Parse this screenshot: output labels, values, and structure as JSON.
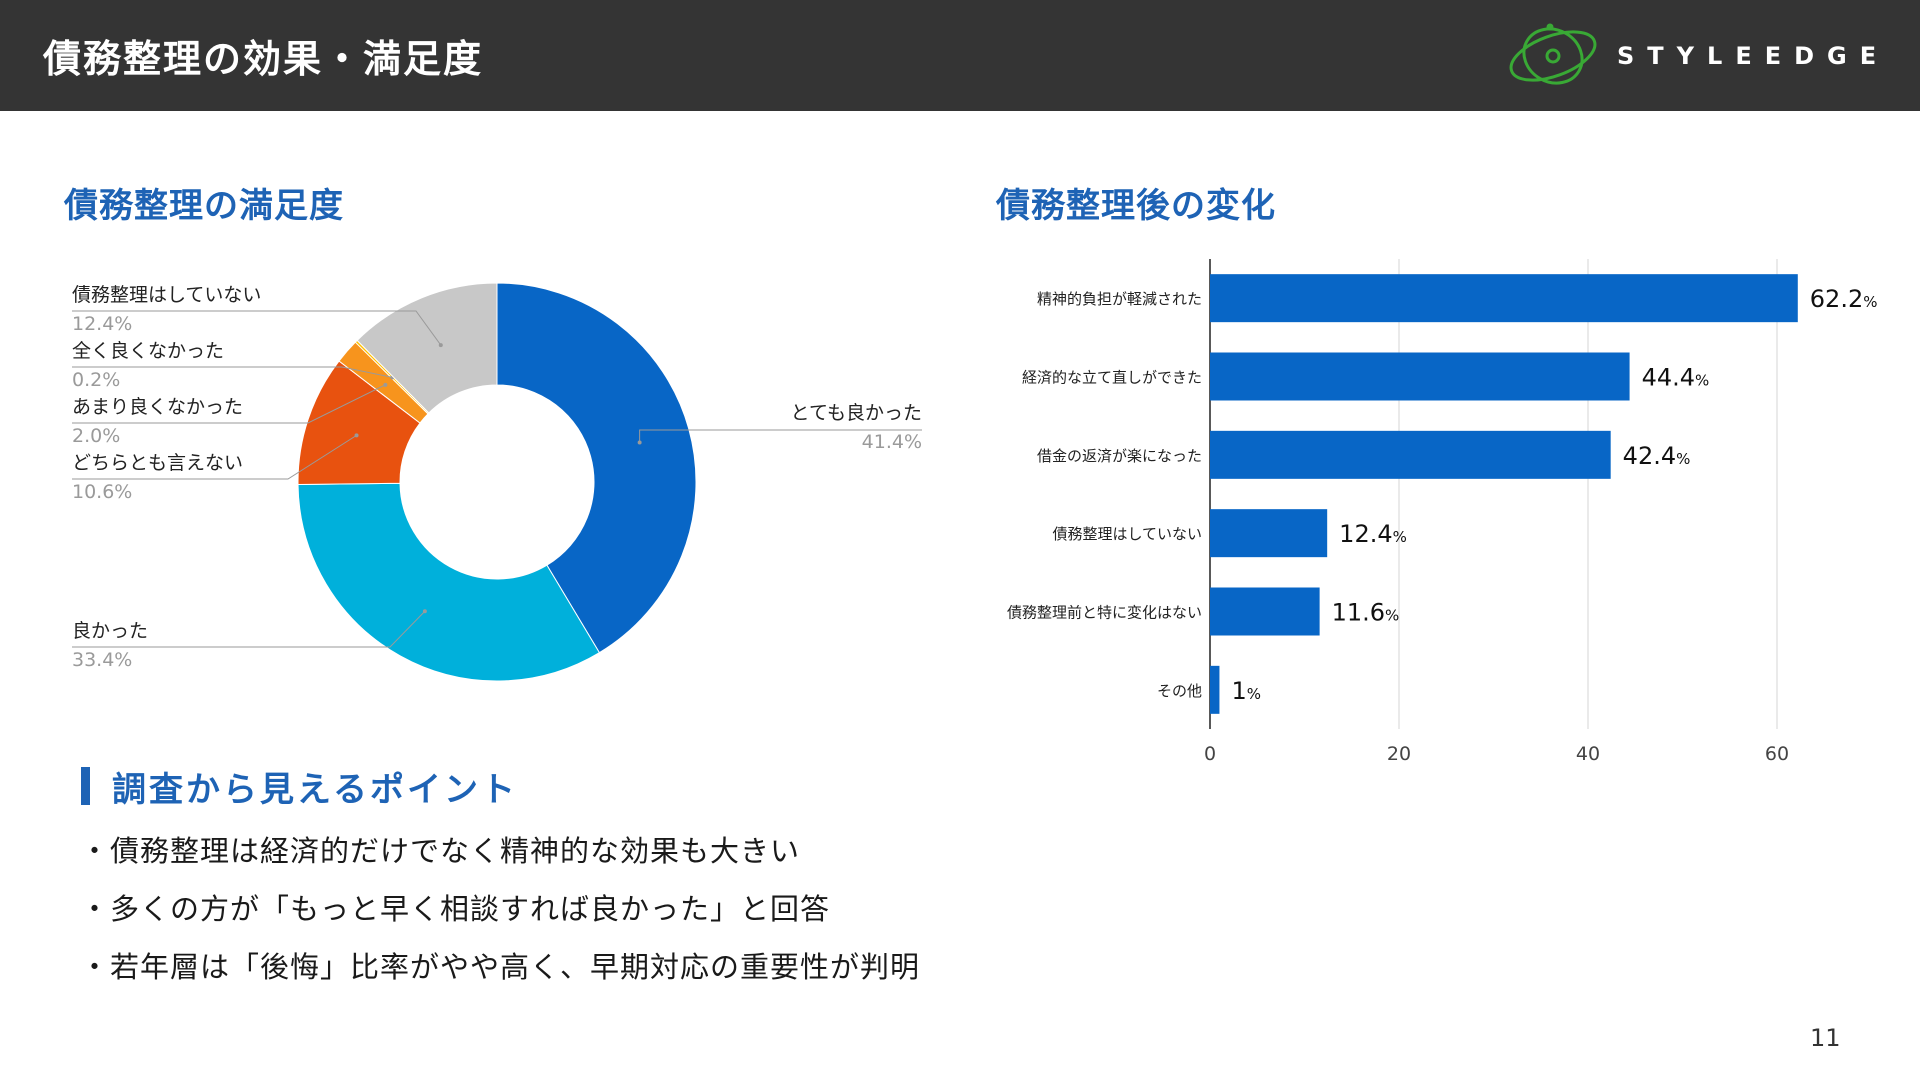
{
  "header": {
    "title": "債務整理の効果・満足度",
    "brand": "STYLEEDGE"
  },
  "colors": {
    "accent": "#1e63b5",
    "header_bg": "#343434",
    "bar": "#0866c6",
    "logo_green": "#39a935"
  },
  "donut": {
    "title": "債務整理の満足度"
  },
  "bars": {
    "title": "債務整理後の変化"
  },
  "chart_data": [
    {
      "type": "pie",
      "donut": true,
      "title": "債務整理の満足度",
      "slices": [
        {
          "label": "とても良かった",
          "value": 41.4,
          "value_label": "41.4%",
          "color": "#0866c6"
        },
        {
          "label": "良かった",
          "value": 33.4,
          "value_label": "33.4%",
          "color": "#00b0db"
        },
        {
          "label": "どちらとも言えない",
          "value": 10.6,
          "value_label": "10.6%",
          "color": "#e8520f"
        },
        {
          "label": "あまり良くなかった",
          "value": 2.0,
          "value_label": "2.0%",
          "color": "#f7941d"
        },
        {
          "label": "全く良くなかった",
          "value": 0.2,
          "value_label": "0.2%",
          "color": "#ffc000"
        },
        {
          "label": "債務整理はしていない",
          "value": 12.4,
          "value_label": "12.4%",
          "color": "#c8c8c8"
        }
      ]
    },
    {
      "type": "bar",
      "orientation": "horizontal",
      "title": "債務整理後の変化",
      "categories": [
        "精神的負担が軽減された",
        "経済的な立て直しができた",
        "借金の返済が楽になった",
        "債務整理はしていない",
        "債務整理前と特に変化はない",
        "その他"
      ],
      "values": [
        62.2,
        44.4,
        42.4,
        12.4,
        11.6,
        1
      ],
      "value_labels": [
        "62.2",
        "44.4",
        "42.4",
        "12.4",
        "11.6",
        "1"
      ],
      "unit": "%",
      "xlim": [
        0,
        70
      ],
      "xticks": [
        0,
        20,
        40,
        60
      ],
      "grid": true
    }
  ],
  "points": {
    "title": "調査から見えるポイント",
    "items": [
      "・債務整理は経済的だけでなく精神的な効果も大きい",
      "・多くの方が「もっと早く相談すれば良かった」と回答",
      "・若年層は「後悔」比率がやや高く、早期対応の重要性が判明"
    ]
  },
  "page_number": "11"
}
